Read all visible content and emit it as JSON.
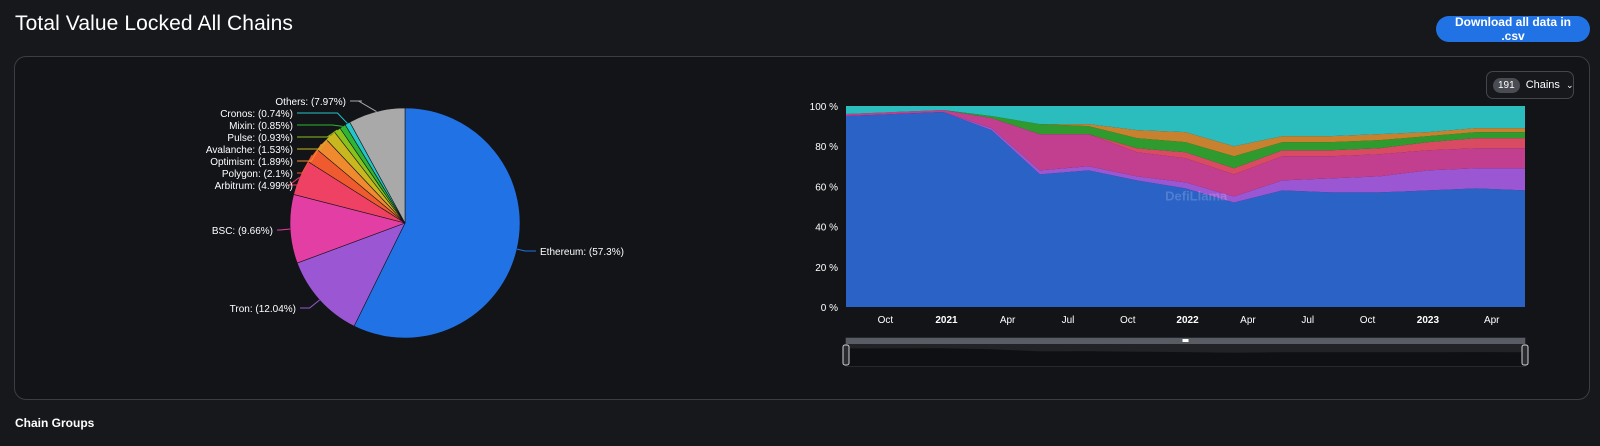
{
  "page": {
    "title": "Total Value Locked All Chains",
    "download_label": "Download all data in .csv",
    "section_heading": "Chain Groups"
  },
  "chains_selector": {
    "count": "191",
    "label": "Chains"
  },
  "watermark": "DefiLlama",
  "chart_data": [
    {
      "type": "pie",
      "title": "",
      "slices": [
        {
          "label": "Ethereum: (57.3%)",
          "name": "Ethereum",
          "value": 57.3,
          "color": "#2172e5"
        },
        {
          "label": "Tron: (12.04%)",
          "name": "Tron",
          "value": 12.04,
          "color": "#9b57d3"
        },
        {
          "label": "BSC: (9.66%)",
          "name": "BSC",
          "value": 9.66,
          "color": "#e23ea3"
        },
        {
          "label": "Arbitrum: (4.99%)",
          "name": "Arbitrum",
          "value": 4.99,
          "color": "#ee4164"
        },
        {
          "label": "Polygon: (2.1%)",
          "name": "Polygon",
          "value": 2.1,
          "color": "#ef5a2e"
        },
        {
          "label": "Optimism: (1.89%)",
          "name": "Optimism",
          "value": 1.89,
          "color": "#ef8a2e"
        },
        {
          "label": "Avalanche: (1.53%)",
          "name": "Avalanche",
          "value": 1.53,
          "color": "#c8b71e"
        },
        {
          "label": "Pulse: (0.93%)",
          "name": "Pulse",
          "value": 0.93,
          "color": "#8ac21d"
        },
        {
          "label": "Mixin: (0.85%)",
          "name": "Mixin",
          "value": 0.85,
          "color": "#2fb534"
        },
        {
          "label": "Cronos: (0.74%)",
          "name": "Cronos",
          "value": 0.74,
          "color": "#24c4c9"
        },
        {
          "label": "Others: (7.97%)",
          "name": "Others",
          "value": 7.97,
          "color": "#a9a9a9"
        }
      ]
    },
    {
      "type": "area",
      "stacked": "percent",
      "title": "",
      "y_ticks": [
        "0 %",
        "20 %",
        "40 %",
        "60 %",
        "80 %",
        "100 %"
      ],
      "x_ticks": [
        {
          "label": "Oct",
          "bold": false
        },
        {
          "label": "2021",
          "bold": true
        },
        {
          "label": "Apr",
          "bold": false
        },
        {
          "label": "Jul",
          "bold": false
        },
        {
          "label": "Oct",
          "bold": false
        },
        {
          "label": "2022",
          "bold": true
        },
        {
          "label": "Apr",
          "bold": false
        },
        {
          "label": "Jul",
          "bold": false
        },
        {
          "label": "Oct",
          "bold": false
        },
        {
          "label": "2023",
          "bold": true
        },
        {
          "label": "Apr",
          "bold": false
        }
      ],
      "x": [
        "2020-08",
        "2020-10",
        "2021-01",
        "2021-03",
        "2021-05",
        "2021-07",
        "2021-10",
        "2022-01",
        "2022-04",
        "2022-05",
        "2022-07",
        "2022-10",
        "2023-01",
        "2023-04",
        "2023-05"
      ],
      "series": [
        {
          "name": "Ethereum",
          "color": "#2a62c5",
          "values": [
            95,
            96,
            97,
            88,
            66,
            68,
            63,
            59,
            52,
            58,
            57,
            57,
            58,
            59,
            58
          ]
        },
        {
          "name": "Tron",
          "color": "#9b57d3",
          "values": [
            0,
            0,
            0,
            1,
            2,
            2,
            2,
            3,
            3,
            5,
            7,
            8,
            10,
            10,
            11
          ]
        },
        {
          "name": "BSC",
          "color": "#c23f8f",
          "values": [
            1,
            1,
            1,
            5,
            18,
            16,
            12,
            12,
            11,
            12,
            11,
            11,
            10,
            10,
            10
          ]
        },
        {
          "name": "Arbitrum",
          "color": "#d94b63",
          "values": [
            0,
            0,
            0,
            0,
            0,
            0,
            2,
            3,
            3,
            3,
            3,
            3,
            4,
            5,
            5
          ]
        },
        {
          "name": "Polygon",
          "color": "#2f9b2f",
          "values": [
            0,
            0,
            0,
            1,
            5,
            4,
            5,
            5,
            6,
            4,
            4,
            4,
            3,
            3,
            3
          ]
        },
        {
          "name": "Avalanche",
          "color": "#c8812e",
          "values": [
            0,
            0,
            0,
            0,
            0,
            1,
            4,
            5,
            5,
            3,
            3,
            3,
            2,
            2,
            2
          ]
        },
        {
          "name": "Others",
          "color": "#2bbdbd",
          "values": [
            4,
            3,
            2,
            5,
            9,
            9,
            12,
            13,
            20,
            15,
            15,
            14,
            13,
            11,
            11
          ]
        }
      ]
    }
  ]
}
